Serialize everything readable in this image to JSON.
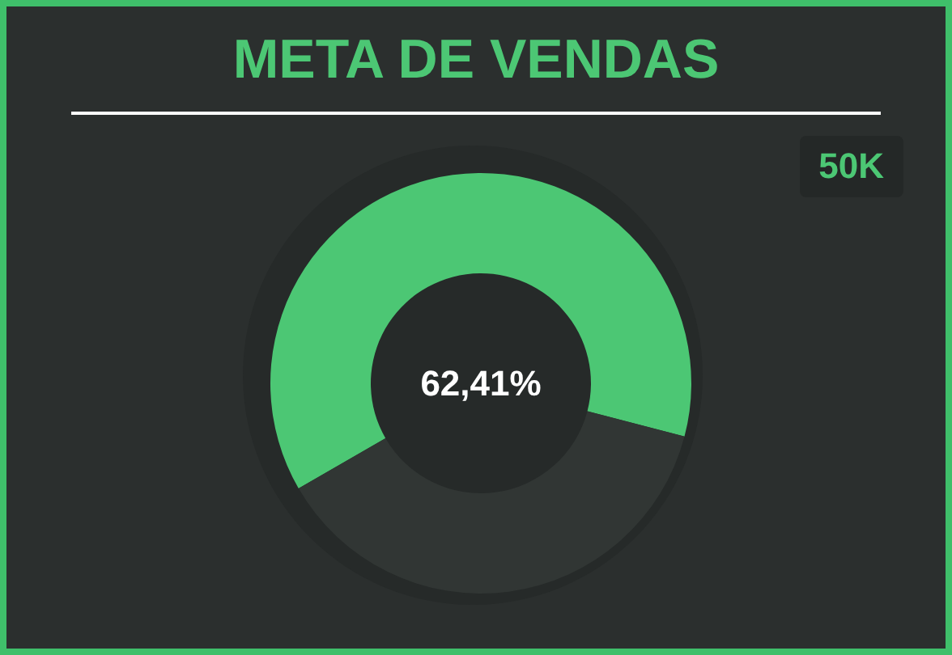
{
  "chart_data": {
    "type": "donut",
    "title": "META DE VENDAS",
    "categories": [
      null,
      null
    ],
    "values": [
      62.41,
      37.59
    ],
    "colors": [
      "#4cc774",
      "#313634"
    ],
    "annotations": [
      "62,41%",
      "50K"
    ]
  }
}
